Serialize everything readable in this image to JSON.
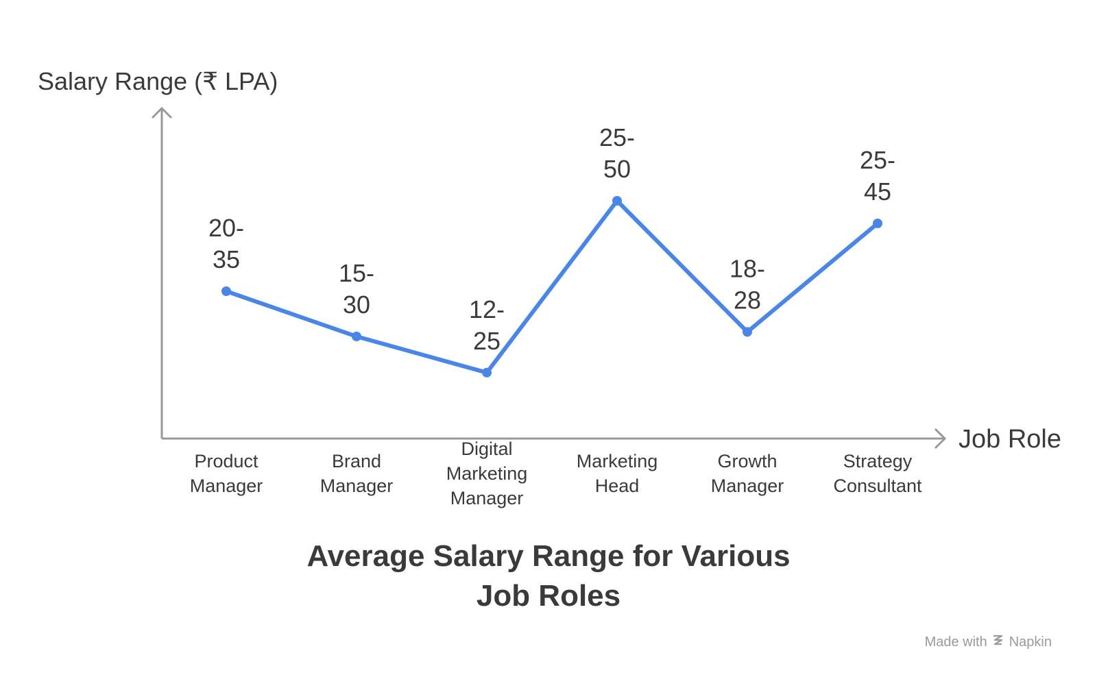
{
  "chart_data": {
    "type": "line",
    "title": "Average Salary Range for Various Job Roles",
    "title_lines": [
      "Average Salary Range for Various",
      "Job Roles"
    ],
    "ylabel": "Salary Range (₹ LPA)",
    "xlabel": "Job Role",
    "categories": [
      "Product Manager",
      "Brand Manager",
      "Digital Marketing Manager",
      "Marketing Head",
      "Growth Manager",
      "Strategy Consultant"
    ],
    "category_lines": [
      [
        "Product",
        "Manager"
      ],
      [
        "Brand",
        "Manager"
      ],
      [
        "Digital",
        "Marketing",
        "Manager"
      ],
      [
        "Marketing",
        "Head"
      ],
      [
        "Growth",
        "Manager"
      ],
      [
        "Strategy",
        "Consultant"
      ]
    ],
    "series": [
      {
        "values": [
          27.5,
          22.5,
          18.5,
          37.5,
          23,
          35
        ],
        "ranges": [
          [
            20,
            35
          ],
          [
            15,
            30
          ],
          [
            12,
            25
          ],
          [
            25,
            50
          ],
          [
            18,
            28
          ],
          [
            25,
            45
          ]
        ],
        "labels": [
          "20-35",
          "15-30",
          "12-25",
          "25-50",
          "18-28",
          "25-45"
        ],
        "label_lines": [
          [
            "20-",
            "35"
          ],
          [
            "15-",
            "30"
          ],
          [
            "12-",
            "25"
          ],
          [
            "25-",
            "50"
          ],
          [
            "18-",
            "28"
          ],
          [
            "25-",
            "45"
          ]
        ],
        "color": "#4a86e8"
      }
    ],
    "ylim": [
      15,
      40
    ],
    "grid": false,
    "axis_color": "#999999"
  },
  "watermark": {
    "prefix": "Made with",
    "brand": "Napkin",
    "icon": "napkin-logo-icon"
  }
}
